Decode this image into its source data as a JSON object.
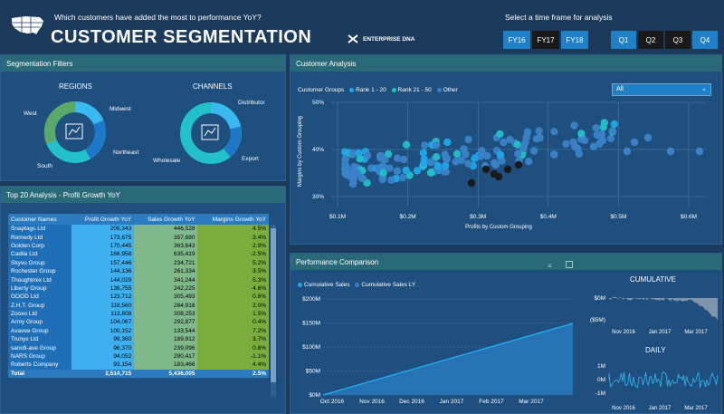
{
  "header": {
    "question": "Which customers have added the most to performance YoY?",
    "title": "CUSTOMER SEGMENTATION",
    "brand": "ENTERPRISE DNA",
    "timeframe_label": "Select a time frame for analysis",
    "years": [
      "FY16",
      "FY17",
      "FY18"
    ],
    "quarters": [
      "Q1",
      "Q2",
      "Q3",
      "Q4"
    ]
  },
  "filters": {
    "panel_title": "Segmentation Filters",
    "regions_title": "REGIONS",
    "regions": [
      "West",
      "Midwest",
      "Northeast",
      "South"
    ],
    "channels_title": "CHANNELS",
    "channels": [
      "Distributor",
      "Export",
      "Wholesale"
    ]
  },
  "top20": {
    "panel_title": "Top 20 Analysis - Profit Growth YoY",
    "columns": [
      "Customer Names",
      "Profit Growth YoY",
      "Sales Growth YoY",
      "Margins Growth YoY"
    ],
    "rows": [
      [
        "Snaptags Ltd",
        "209,343",
        "446,528",
        "4.5%"
      ],
      [
        "Remedy Ltd",
        "173,675",
        "357,680",
        "3.4%"
      ],
      [
        "Golden Corp",
        "170,445",
        "363,643",
        "2.9%"
      ],
      [
        "Cadila Ltd",
        "166,958",
        "635,419",
        "-2.5%"
      ],
      [
        "Skyvu Group",
        "157,446",
        "234,721",
        "5.2%"
      ],
      [
        "Rochester Group",
        "144,136",
        "261,334",
        "3.5%"
      ],
      [
        "Thoughtmix Ltd",
        "144,029",
        "341,244",
        "5.3%"
      ],
      [
        "Liberty Group",
        "136,755",
        "242,225",
        "4.6%"
      ],
      [
        "GOOD Ltd",
        "123,712",
        "305,493",
        "0.8%"
      ],
      [
        "Z.H.T. Group",
        "118,560",
        "284,918",
        "2.0%"
      ],
      [
        "Zooxo Ltd",
        "113,808",
        "308,253",
        "1.5%"
      ],
      [
        "Army Group",
        "104,067",
        "292,877",
        "0.4%"
      ],
      [
        "Avavee Group",
        "100,152",
        "133,544",
        "7.2%"
      ],
      [
        "Trunyx Ltd",
        "99,360",
        "189,912",
        "3.7%"
      ],
      [
        "sanofi-ave Group",
        "96,370",
        "239,096",
        "0.8%"
      ],
      [
        "NARS Group",
        "94,052",
        "290,417",
        "-1.1%"
      ],
      [
        "Roberts Company",
        "93,154",
        "183,466",
        "4.4%"
      ]
    ],
    "total": [
      "Total",
      "2,514,715",
      "5,436,005",
      "2.5%"
    ]
  },
  "customer_analysis": {
    "panel_title": "Customer Analysis",
    "legend_label": "Customer Groups",
    "legend_items": [
      "Rank 1 - 20",
      "Rank 21 - 50",
      "Other"
    ],
    "dropdown_value": "All",
    "y_ticks": [
      "50%",
      "40%",
      "30%"
    ],
    "x_ticks": [
      "$0.1M",
      "$0.2M",
      "$0.3M",
      "$0.4M",
      "$0.5M",
      "$0.6M"
    ],
    "y_label": "Margins by Custom Grouping",
    "x_label": "Profits by Custom Grouping"
  },
  "performance": {
    "panel_title": "Performance Comparison",
    "legend": [
      "Cumulative Sales",
      "Cumulative Sales LY"
    ],
    "y_ticks": [
      "$200M",
      "$150M",
      "$100M",
      "$50M",
      "$0M"
    ],
    "x_ticks": [
      "Oct 2016",
      "Nov 2016",
      "Dec 2016",
      "Jan 2017",
      "Feb 2017",
      "Mar 2017"
    ],
    "cumulative_title": "CUMULATIVE",
    "cumulative_y": [
      "$0M",
      "($5M)"
    ],
    "cumulative_x": [
      "Nov 2016",
      "Jan 2017",
      "Mar 2017"
    ],
    "daily_title": "DAILY",
    "daily_y": [
      "1M",
      "0M",
      "-1M"
    ],
    "daily_x": [
      "Nov 2016",
      "Jan 2017",
      "Mar 2017"
    ]
  },
  "colors": {
    "background": "#1b3a5c",
    "panel": "#1f4f7e",
    "header_band": "#2a6a78",
    "rank_top": "#1fa8e8",
    "rank_mid": "#22c0c8",
    "rank_other": "#3a82c8"
  }
}
